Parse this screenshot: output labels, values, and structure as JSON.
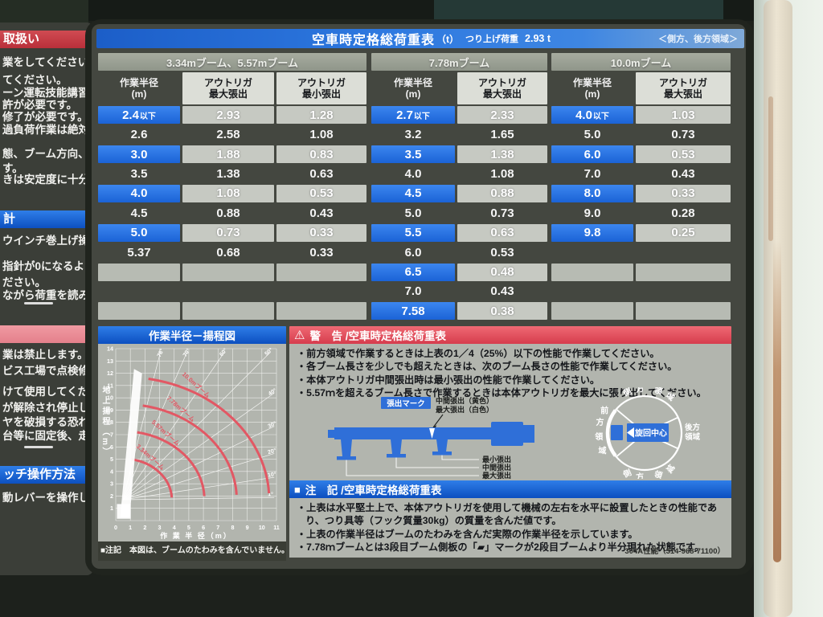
{
  "title_bar": {
    "title": "空車時定格総荷重表",
    "unit": "（t）",
    "sub_label": "つり上げ荷重",
    "sub_value": "2.93 t",
    "region_note": "＜側方、後方領域＞"
  },
  "boom_groups": [
    "3.34mブーム、5.57mブーム",
    "7.78mブーム",
    "10.0mブーム"
  ],
  "table": {
    "sections": [
      {
        "headers": [
          [
            "作業半径",
            "(m)"
          ],
          [
            "アウトリガ",
            "最大張出"
          ],
          [
            "アウトリガ",
            "最小張出"
          ]
        ],
        "rows": [
          [
            "2.4以下",
            "2.93",
            "1.28"
          ],
          [
            "2.6",
            "2.58",
            "1.08"
          ],
          [
            "3.0",
            "1.88",
            "0.83"
          ],
          [
            "3.5",
            "1.38",
            "0.63"
          ],
          [
            "4.0",
            "1.08",
            "0.53"
          ],
          [
            "4.5",
            "0.88",
            "0.43"
          ],
          [
            "5.0",
            "0.73",
            "0.33"
          ],
          [
            "5.37",
            "0.68",
            "0.33"
          ],
          [
            "",
            "",
            ""
          ],
          [
            "",
            "",
            ""
          ],
          [
            "",
            "",
            ""
          ]
        ]
      },
      {
        "headers": [
          [
            "作業半径",
            "(m)"
          ],
          [
            "アウトリガ",
            "最大張出"
          ]
        ],
        "rows": [
          [
            "2.7以下",
            "2.33"
          ],
          [
            "3.2",
            "1.65"
          ],
          [
            "3.5",
            "1.38"
          ],
          [
            "4.0",
            "1.08"
          ],
          [
            "4.5",
            "0.88"
          ],
          [
            "5.0",
            "0.73"
          ],
          [
            "5.5",
            "0.63"
          ],
          [
            "6.0",
            "0.53"
          ],
          [
            "6.5",
            "0.48"
          ],
          [
            "7.0",
            "0.43"
          ],
          [
            "7.58",
            "0.38"
          ]
        ]
      },
      {
        "headers": [
          [
            "作業半径",
            "(m)"
          ],
          [
            "アウトリガ",
            "最大張出"
          ]
        ],
        "rows": [
          [
            "4.0以下",
            "1.03"
          ],
          [
            "5.0",
            "0.73"
          ],
          [
            "6.0",
            "0.53"
          ],
          [
            "7.0",
            "0.43"
          ],
          [
            "8.0",
            "0.33"
          ],
          [
            "9.0",
            "0.28"
          ],
          [
            "9.8",
            "0.25"
          ],
          [
            "",
            ""
          ],
          [
            "",
            ""
          ],
          [
            "",
            ""
          ],
          [
            "",
            ""
          ]
        ]
      }
    ]
  },
  "chart_data": {
    "type": "line",
    "title": "作業半径－揚程図",
    "xlabel": "作 業 半 径（m）",
    "ylabel": "地上揚程（m）",
    "xlim": [
      0,
      11
    ],
    "ylim": [
      0,
      14
    ],
    "x_ticks": [
      0,
      1,
      2,
      3,
      4,
      5,
      6,
      7,
      8,
      9,
      10,
      11
    ],
    "y_ticks": [
      1,
      2,
      3,
      4,
      5,
      6,
      7,
      8,
      9,
      10,
      11,
      12,
      13,
      14
    ],
    "boom_arcs": [
      {
        "label": "10.0mブーム",
        "radius_m": 10.0
      },
      {
        "label": "7.78mブーム",
        "radius_m": 7.78
      },
      {
        "label": "5.57mブーム",
        "radius_m": 5.57
      },
      {
        "label": "3.34mブーム",
        "radius_m": 3.34
      }
    ],
    "angle_lines_deg": [
      78,
      70,
      60,
      50,
      40,
      30,
      20,
      10,
      1
    ],
    "note": "■注記　本図は、ブームのたわみを含んでいません。",
    "grid": true,
    "arc_color": "#e25864"
  },
  "warning": {
    "icon": "⚠",
    "header": "警　告 /空車時定格総荷重表",
    "bullets": [
      "・前方領域で作業するときは上表の1／4（25%）以下の性能で作業してください。",
      "・各ブーム長さを少しでも超えたときは、次のブーム長さの性能で作業してください。",
      "・本体アウトリガ中間張出時は最小張出の性能で作業してください。",
      "・5.57ｍを超えるブーム長さで作業するときは本体アウトリガを最大に張り出してください。"
    ]
  },
  "outrigger_diagram": {
    "mark_label": "張出マーク",
    "top_label_1": "中間張出（黄色）",
    "top_label_2": "最大張出（白色）",
    "position_labels": [
      "最小張出",
      "中間張出",
      "最大張出"
    ]
  },
  "rotation_diagram": {
    "center": "旋回中心",
    "front": "前方領域",
    "side_top": "側方領域",
    "side_bottom": "側方領域",
    "rear_line1": "後方",
    "rear_line2": "領域"
  },
  "notes": {
    "icon": "■",
    "header": "注　記 /空車時定格総荷重表",
    "bullets": [
      "・上表は水平堅土上で、本体アウトリガを使用して機械の左右を水平に設置したときの性能であり、つり具等（フック質量30kg）の質量を含んだ値です。",
      "・上表の作業半径はブームのたわみを含んだ実際の作業半径を示しています。",
      "・7.78ｍブームとは3段目ブーム側板の「▰」マークが2段目ブームより半分現れた状態です。"
    ],
    "footer": "304A性能（314-968-71100）"
  },
  "sidebar": {
    "blocks": [
      {
        "t": "hr",
        "text": "取扱い"
      },
      {
        "t": "ln",
        "text": "業をしてください。"
      },
      {
        "t": "ln",
        "text": "てください。"
      },
      {
        "t": "ln",
        "text": "ーン運転技能講習修了、"
      },
      {
        "t": "ln",
        "text": "許が必要です。"
      },
      {
        "t": "ln",
        "text": "修了が必要です。"
      },
      {
        "t": "ln",
        "text": "過負荷作業は絶対に"
      },
      {
        "t": "ln",
        "text": "態、ブーム方向、"
      },
      {
        "t": "ln",
        "text": "す。"
      },
      {
        "t": "ln",
        "text": "きは安定度に十分注意"
      },
      {
        "t": "hb",
        "text": "計"
      },
      {
        "t": "ln",
        "text": "ウインチ巻上げ操作時"
      },
      {
        "t": "ln",
        "text": " 指針が0になるように"
      },
      {
        "t": "ln",
        "text": "ださい。"
      },
      {
        "t": "ln",
        "text": "ながら荷重を読み取って"
      },
      {
        "t": "dash",
        "text": ""
      },
      {
        "t": "hp",
        "text": ""
      },
      {
        "t": "ln",
        "text": "業は禁止します。"
      },
      {
        "t": "ln",
        "text": "ビス工場で点検修理して"
      },
      {
        "t": "ln",
        "text": "けて使用してください。"
      },
      {
        "t": "ln",
        "text": "が解除され停止しません。"
      },
      {
        "t": "ln",
        "text": "ヤを破損する恐れがある"
      },
      {
        "t": "ln",
        "text": "台等に固定後、走行して"
      },
      {
        "t": "dash",
        "text": ""
      },
      {
        "t": "hb",
        "text": "ッチ操作方法"
      },
      {
        "t": "ln",
        "text": "動レバーを操作し、機械を"
      }
    ]
  }
}
